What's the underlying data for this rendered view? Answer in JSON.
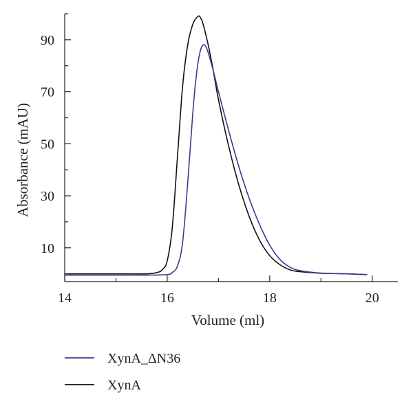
{
  "chart_data": {
    "type": "line",
    "xlabel": "Volume (ml)",
    "ylabel": "Absorbance (mAU)",
    "xlim": [
      14,
      20.5
    ],
    "ylim": [
      -3,
      100
    ],
    "x_ticks": [
      14,
      16,
      18,
      20
    ],
    "x_minor_ticks": [
      15,
      17,
      19
    ],
    "y_ticks": [
      10,
      30,
      50,
      70,
      90
    ],
    "y_minor_ticks": [
      0,
      20,
      40,
      60,
      80,
      100
    ],
    "legend_placement": "bottom-left",
    "grid": false,
    "series": [
      {
        "name": "XynA_ΔN36",
        "color": "#3b3a8f",
        "x": [
          14.0,
          15.0,
          15.6,
          16.0,
          16.1,
          16.2,
          16.3,
          16.4,
          16.5,
          16.55,
          16.6,
          16.65,
          16.7,
          16.75,
          16.8,
          16.9,
          17.0,
          17.2,
          17.4,
          17.6,
          17.8,
          18.0,
          18.2,
          18.4,
          18.6,
          19.0,
          19.5,
          19.9
        ],
        "y": [
          -0.5,
          -0.5,
          -0.5,
          -0.3,
          0.5,
          3,
          12,
          35,
          62,
          73,
          81,
          86,
          88,
          87.5,
          85,
          78,
          70,
          55,
          41,
          29,
          19,
          11,
          5.5,
          2.5,
          1.2,
          0.3,
          0,
          -0.3
        ]
      },
      {
        "name": "XynA",
        "color": "#111111",
        "x": [
          14.0,
          15.0,
          15.6,
          15.8,
          15.9,
          16.0,
          16.1,
          16.2,
          16.3,
          16.4,
          16.5,
          16.6,
          16.65,
          16.7,
          16.8,
          16.9,
          17.0,
          17.2,
          17.4,
          17.6,
          17.8,
          18.0,
          18.2,
          18.4,
          18.6,
          19.0,
          19.5,
          19.9
        ],
        "y": [
          0,
          0,
          0,
          0.5,
          1.5,
          5,
          18,
          45,
          72,
          88,
          96,
          99,
          98.5,
          96,
          88,
          78,
          67,
          49,
          34,
          22,
          13,
          7,
          3.5,
          1.5,
          0.8,
          0.2,
          0,
          -0.3
        ]
      }
    ]
  }
}
